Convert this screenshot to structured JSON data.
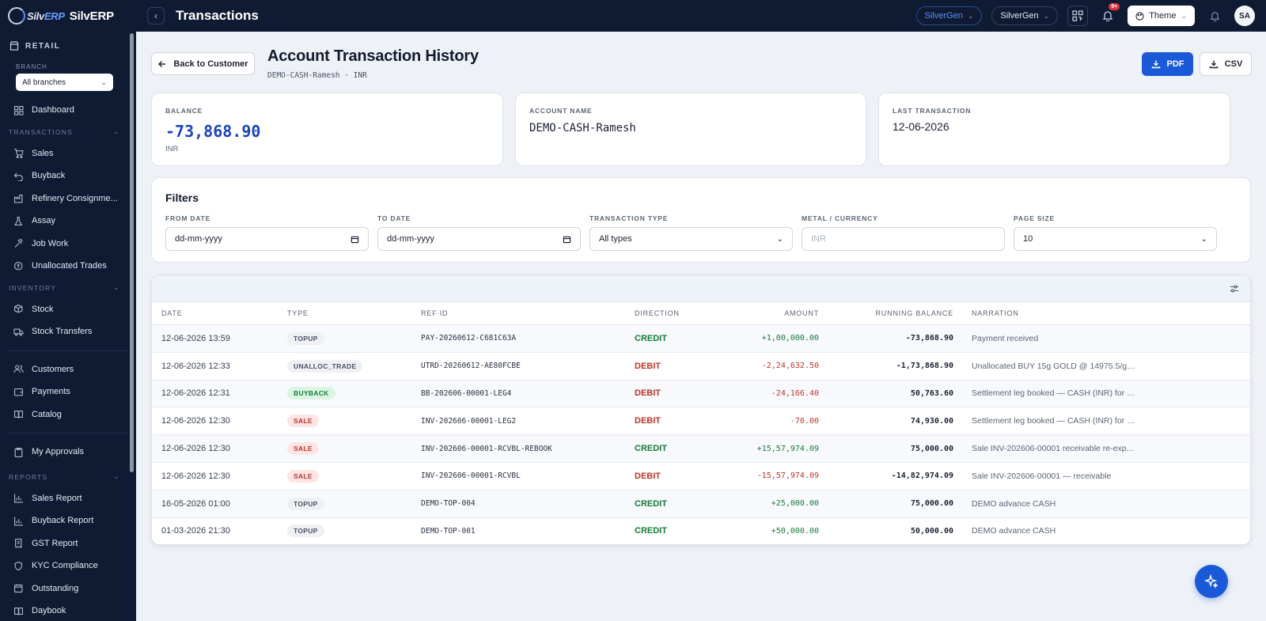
{
  "brand": {
    "logo_text_1": "Silv",
    "logo_text_2": "ERP",
    "name": "SilvERP"
  },
  "header": {
    "title": "Transactions",
    "org_pill": "SilverGen",
    "org_select": "SilverGen",
    "notif_badge": "9+",
    "theme_label": "Theme",
    "avatar_initials": "SA"
  },
  "sidebar": {
    "section": "RETAIL",
    "branch_label": "BRANCH",
    "branch_value": "All branches",
    "top_items": [
      {
        "label": "Dashboard",
        "icon": "dashboard-icon"
      }
    ],
    "groups": [
      {
        "label": "TRANSACTIONS",
        "items": [
          {
            "label": "Sales",
            "icon": "cart-icon"
          },
          {
            "label": "Buyback",
            "icon": "undo-icon"
          },
          {
            "label": "Refinery Consignme...",
            "icon": "factory-icon"
          },
          {
            "label": "Assay",
            "icon": "flask-icon"
          },
          {
            "label": "Job Work",
            "icon": "hammer-icon"
          },
          {
            "label": "Unallocated Trades",
            "icon": "coins-icon"
          }
        ]
      },
      {
        "label": "INVENTORY",
        "items": [
          {
            "label": "Stock",
            "icon": "box-icon"
          },
          {
            "label": "Stock Transfers",
            "icon": "truck-icon"
          }
        ]
      }
    ],
    "mid_items": [
      {
        "label": "Customers",
        "icon": "users-icon"
      },
      {
        "label": "Payments",
        "icon": "wallet-icon"
      },
      {
        "label": "Catalog",
        "icon": "book-icon"
      }
    ],
    "approvals": "My Approvals",
    "reports_label": "REPORTS",
    "reports": [
      {
        "label": "Sales Report",
        "icon": "chart-icon"
      },
      {
        "label": "Buyback Report",
        "icon": "chart-icon"
      },
      {
        "label": "GST Report",
        "icon": "receipt-icon"
      },
      {
        "label": "KYC Compliance",
        "icon": "shield-icon"
      },
      {
        "label": "Outstanding",
        "icon": "calendar-icon"
      },
      {
        "label": "Daybook",
        "icon": "book-icon"
      }
    ]
  },
  "page": {
    "back_label": "Back to Customer",
    "title": "Account Transaction History",
    "subtitle": "DEMO-CASH-Ramesh · INR",
    "pdf_label": "PDF",
    "csv_label": "CSV"
  },
  "summary": {
    "balance_label": "BALANCE",
    "balance_value": "-73,868.90",
    "balance_currency": "INR",
    "account_label": "ACCOUNT NAME",
    "account_value": "DEMO-CASH-Ramesh",
    "last_label": "LAST TRANSACTION",
    "last_value": "12-06-2026"
  },
  "filters": {
    "title": "Filters",
    "from_label": "FROM DATE",
    "from_value": "dd-mm-yyyy",
    "to_label": "TO DATE",
    "to_value": "dd-mm-yyyy",
    "type_label": "TRANSACTION TYPE",
    "type_value": "All types",
    "metal_label": "METAL / CURRENCY",
    "metal_placeholder": "INR",
    "page_size_label": "PAGE SIZE",
    "page_size_value": "10"
  },
  "table": {
    "headers": [
      "DATE",
      "TYPE",
      "REF ID",
      "DIRECTION",
      "AMOUNT",
      "RUNNING BALANCE",
      "NARRATION"
    ],
    "rows": [
      {
        "date": "12-06-2026 13:59",
        "type": "TOPUP",
        "type_style": "gray",
        "ref": "PAY-20260612-C681C63A",
        "direction": "CREDIT",
        "amount": "+1,00,000.00",
        "running": "-73,868.90",
        "narration": "Payment received"
      },
      {
        "date": "12-06-2026 12:33",
        "type": "UNALLOC_TRADE",
        "type_style": "gray",
        "ref": "UTRD-20260612-AE80FCBE",
        "direction": "DEBIT",
        "amount": "-2,24,632.50",
        "running": "-1,73,868.90",
        "narration": "Unallocated BUY 15g GOLD @ 14975.5/g (M..."
      },
      {
        "date": "12-06-2026 12:31",
        "type": "BUYBACK",
        "type_style": "green",
        "ref": "BB-202606-00001-LEG4",
        "direction": "DEBIT",
        "amount": "-24,166.40",
        "running": "50,763.60",
        "narration": "Settlement leg booked — CASH (INR) for BB-..."
      },
      {
        "date": "12-06-2026 12:30",
        "type": "SALE",
        "type_style": "red",
        "ref": "INV-202606-00001-LEG2",
        "direction": "DEBIT",
        "amount": "-70.00",
        "running": "74,930.00",
        "narration": "Settlement leg booked — CASH (INR) for INV..."
      },
      {
        "date": "12-06-2026 12:30",
        "type": "SALE",
        "type_style": "red",
        "ref": "INV-202606-00001-RCVBL-REBOOK",
        "direction": "CREDIT",
        "amount": "+15,57,974.09",
        "running": "75,000.00",
        "narration": "Sale INV-202606-00001 receivable re-expre..."
      },
      {
        "date": "12-06-2026 12:30",
        "type": "SALE",
        "type_style": "red",
        "ref": "INV-202606-00001-RCVBL",
        "direction": "DEBIT",
        "amount": "-15,57,974.09",
        "running": "-14,82,974.09",
        "narration": "Sale INV-202606-00001 — receivable"
      },
      {
        "date": "16-05-2026 01:00",
        "type": "TOPUP",
        "type_style": "gray",
        "ref": "DEMO-TOP-004",
        "direction": "CREDIT",
        "amount": "+25,000.00",
        "running": "75,000.00",
        "narration": "DEMO advance CASH"
      },
      {
        "date": "01-03-2026 21:30",
        "type": "TOPUP",
        "type_style": "gray",
        "ref": "DEMO-TOP-001",
        "direction": "CREDIT",
        "amount": "+50,000.00",
        "running": "50,000.00",
        "narration": "DEMO advance CASH"
      }
    ]
  },
  "colors": {
    "accent": "#1a5ad9",
    "credit": "#177a3a",
    "debit": "#c0332b",
    "nav_bg": "#0f1b33"
  }
}
